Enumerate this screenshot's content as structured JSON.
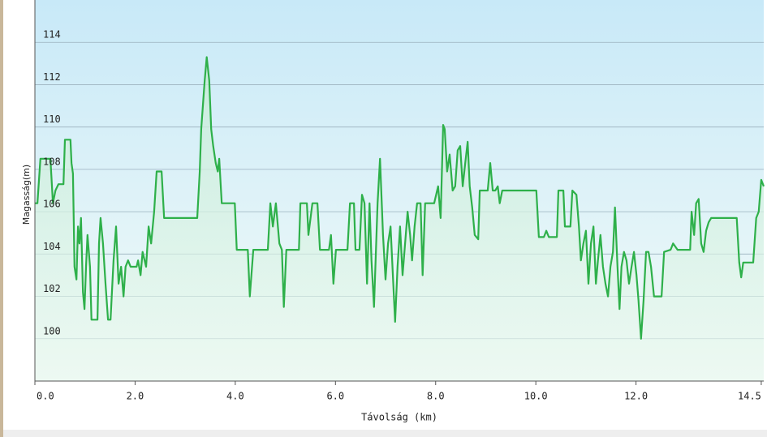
{
  "chart_data": {
    "type": "line",
    "x_label": "Távolság  (km)",
    "y_label": "Magasság(m)",
    "xlim": [
      0,
      14.55
    ],
    "ylim": [
      98,
      116
    ],
    "xticks": [
      {
        "value": 0,
        "label": "0.0"
      },
      {
        "value": 2,
        "label": "2.0"
      },
      {
        "value": 4,
        "label": "4.0"
      },
      {
        "value": 6,
        "label": "6.0"
      },
      {
        "value": 8,
        "label": "8.0"
      },
      {
        "value": 10,
        "label": "10.0"
      },
      {
        "value": 12,
        "label": "12.0"
      },
      {
        "value": 14.5,
        "label": "14.5"
      }
    ],
    "yticks": [
      100,
      102,
      104,
      106,
      108,
      110,
      112,
      114
    ],
    "grid": true,
    "x": [
      0,
      0.05,
      0.11,
      0.31,
      0.36,
      0.41,
      0.47,
      0.57,
      0.6,
      0.71,
      0.73,
      0.76,
      0.79,
      0.83,
      0.86,
      0.89,
      0.92,
      0.96,
      0.99,
      1.02,
      1.05,
      1.1,
      1.13,
      1.25,
      1.28,
      1.31,
      1.36,
      1.41,
      1.46,
      1.51,
      1.57,
      1.62,
      1.67,
      1.72,
      1.77,
      1.81,
      1.86,
      1.91,
      2.03,
      2.06,
      2.11,
      2.15,
      2.22,
      2.27,
      2.32,
      2.38,
      2.43,
      2.53,
      2.58,
      3.24,
      3.29,
      3.32,
      3.39,
      3.43,
      3.48,
      3.52,
      3.56,
      3.61,
      3.65,
      3.68,
      3.73,
      3.99,
      4.03,
      4.25,
      4.29,
      4.36,
      4.65,
      4.7,
      4.75,
      4.81,
      4.88,
      4.93,
      4.97,
      5.02,
      5.27,
      5.3,
      5.43,
      5.46,
      5.54,
      5.64,
      5.69,
      5.87,
      5.91,
      5.96,
      6.01,
      6.24,
      6.29,
      6.37,
      6.4,
      6.48,
      6.53,
      6.58,
      6.63,
      6.68,
      6.72,
      6.77,
      6.84,
      6.89,
      6.95,
      7.0,
      7.05,
      7.1,
      7.15,
      7.19,
      7.24,
      7.29,
      7.34,
      7.39,
      7.44,
      7.49,
      7.53,
      7.58,
      7.63,
      7.7,
      7.74,
      7.79,
      7.97,
      8.05,
      8.1,
      8.15,
      8.18,
      8.23,
      8.28,
      8.34,
      8.39,
      8.44,
      8.49,
      8.54,
      8.59,
      8.64,
      8.68,
      8.73,
      8.78,
      8.85,
      8.88,
      9.04,
      9.09,
      9.14,
      9.19,
      9.24,
      9.28,
      9.33,
      9.38,
      10.01,
      10.06,
      10.16,
      10.21,
      10.26,
      10.42,
      10.45,
      10.55,
      10.58,
      10.69,
      10.73,
      10.81,
      10.86,
      10.9,
      10.95,
      11.0,
      11.05,
      11.1,
      11.15,
      11.2,
      11.24,
      11.29,
      11.34,
      11.39,
      11.44,
      11.49,
      11.54,
      11.58,
      11.63,
      11.67,
      11.71,
      11.76,
      11.81,
      11.86,
      11.91,
      11.96,
      12.01,
      12.05,
      12.1,
      12.15,
      12.2,
      12.25,
      12.3,
      12.36,
      12.51,
      12.56,
      12.69,
      12.74,
      12.83,
      13.08,
      13.11,
      13.16,
      13.2,
      13.25,
      13.3,
      13.35,
      13.4,
      13.45,
      13.5,
      14.01,
      14.06,
      14.1,
      14.14,
      14.34,
      14.4,
      14.45,
      14.5,
      14.55
    ],
    "series": [
      {
        "color": "#2eb04a",
        "values": [
          106.4,
          106.4,
          108.5,
          108.5,
          106.4,
          107.0,
          107.3,
          107.3,
          109.4,
          109.4,
          108.3,
          107.8,
          103.4,
          102.8,
          105.3,
          104.5,
          105.7,
          102.2,
          101.4,
          103.4,
          104.9,
          103.4,
          100.9,
          100.9,
          104.5,
          105.7,
          104.5,
          102.6,
          100.9,
          100.9,
          103.7,
          105.3,
          102.6,
          103.4,
          102.0,
          103.4,
          103.7,
          103.4,
          103.4,
          103.7,
          103.0,
          104.1,
          103.4,
          105.3,
          104.5,
          106.0,
          107.9,
          107.9,
          105.7,
          105.7,
          107.9,
          109.9,
          112.2,
          113.3,
          112.2,
          109.9,
          109.1,
          108.3,
          107.9,
          108.5,
          106.4,
          106.4,
          104.2,
          104.2,
          102.0,
          104.2,
          104.2,
          106.4,
          105.3,
          106.4,
          104.5,
          104.2,
          101.5,
          104.2,
          104.2,
          106.4,
          106.4,
          104.9,
          106.4,
          106.4,
          104.2,
          104.2,
          104.9,
          102.6,
          104.2,
          104.2,
          106.4,
          106.4,
          104.2,
          104.2,
          106.8,
          106.4,
          102.6,
          106.4,
          103.7,
          101.5,
          106.4,
          108.5,
          104.9,
          102.8,
          104.5,
          105.3,
          102.8,
          100.8,
          103.4,
          105.3,
          103.0,
          104.5,
          106.0,
          104.9,
          103.7,
          105.3,
          106.4,
          106.4,
          103.0,
          106.4,
          106.4,
          107.2,
          105.7,
          110.1,
          109.9,
          107.9,
          108.7,
          107.0,
          107.2,
          108.9,
          109.1,
          107.2,
          108.3,
          109.3,
          107.2,
          106.2,
          104.9,
          104.7,
          107.0,
          107.0,
          108.3,
          107.0,
          107.0,
          107.2,
          106.4,
          107.0,
          107.0,
          107.0,
          104.8,
          104.8,
          105.1,
          104.8,
          104.8,
          107.0,
          107.0,
          105.3,
          105.3,
          107.0,
          106.8,
          105.3,
          103.7,
          104.5,
          105.1,
          102.6,
          104.5,
          105.3,
          102.6,
          103.7,
          104.9,
          103.4,
          102.6,
          102.0,
          103.4,
          104.1,
          106.2,
          103.4,
          101.4,
          103.4,
          104.1,
          103.7,
          102.6,
          103.4,
          104.1,
          103.0,
          101.8,
          100.0,
          101.8,
          104.1,
          104.1,
          103.4,
          102.0,
          102.0,
          104.1,
          104.2,
          104.5,
          104.2,
          104.2,
          106.0,
          104.9,
          106.4,
          106.6,
          104.5,
          104.1,
          105.1,
          105.5,
          105.7,
          105.7,
          103.6,
          102.9,
          103.6,
          103.6,
          105.7,
          106.0,
          107.5,
          107.2
        ]
      }
    ]
  }
}
